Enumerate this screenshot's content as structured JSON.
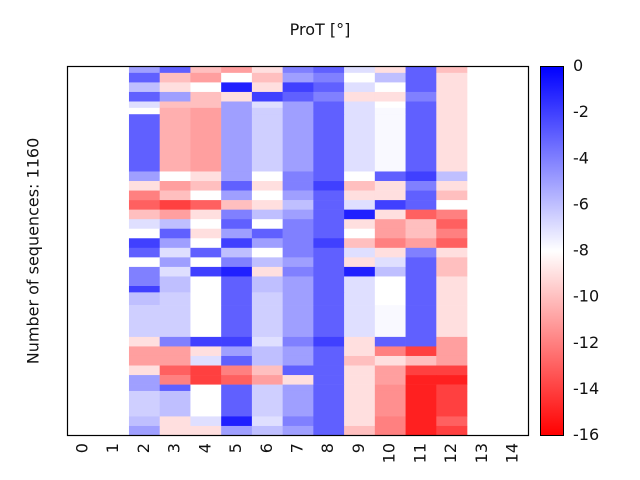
{
  "chart_data": {
    "type": "heatmap",
    "title": "ProT [°]",
    "xlabel": "",
    "ylabel": "Number of sequences: 1160",
    "x_ticks": [
      "0",
      "1",
      "2",
      "3",
      "4",
      "5",
      "6",
      "7",
      "8",
      "9",
      "10",
      "11",
      "12",
      "13",
      "14"
    ],
    "n_rows": 1160,
    "colorbar": {
      "min": -16,
      "max": 0,
      "ticks": [
        "0",
        "-2",
        "-4",
        "-6",
        "-8",
        "-10",
        "-12",
        "-14",
        "-16"
      ],
      "tick_values": [
        0,
        -2,
        -4,
        -6,
        -8,
        -10,
        -12,
        -14,
        -16
      ],
      "colormap": "bwr (red=-16, white=-8, blue=0)"
    },
    "data_columns": [
      2,
      3,
      4,
      5,
      6,
      7,
      8,
      9,
      10,
      11,
      12
    ],
    "segment_row_fractions": [
      0.02,
      0.03,
      0.03,
      0.03,
      0.02,
      0.02,
      0.18,
      0.03,
      0.03,
      0.03,
      0.03,
      0.03,
      0.03,
      0.03,
      0.03,
      0.03,
      0.03,
      0.03,
      0.03,
      0.02,
      0.04,
      0.1,
      0.03,
      0.03,
      0.03,
      0.03,
      0.03,
      0.02,
      0.08,
      0.03,
      0.03
    ],
    "segment_values": [
      [
        -5,
        -3,
        -10,
        -11,
        -9,
        -4,
        -3,
        -7,
        -9,
        -3,
        -10
      ],
      [
        -3,
        -10,
        -11,
        -8,
        -10,
        -5,
        -4,
        -8,
        -6,
        -3,
        -9
      ],
      [
        -6,
        -9,
        -8,
        -1,
        -9,
        -2,
        -3,
        -7,
        -8,
        -3,
        -9
      ],
      [
        -3,
        -5,
        -10,
        -9,
        -2,
        -3,
        -4,
        -9,
        -9,
        -4,
        -9
      ],
      [
        -7,
        -10,
        -10,
        -5,
        -7,
        -5,
        -3,
        -7,
        -8,
        -3,
        -9
      ],
      [
        -8,
        -10.5,
        -11,
        -5,
        -6.5,
        -5,
        -3,
        -7,
        -7.8,
        -3,
        -9
      ],
      [
        -3,
        -10.5,
        -11,
        -5,
        -6.5,
        -5,
        -3,
        -7,
        -7.8,
        -3,
        -9
      ],
      [
        -5,
        -8,
        -9,
        -5,
        -8,
        -4,
        -3,
        -8,
        -3,
        -2,
        -6
      ],
      [
        -9,
        -11,
        -10,
        -3,
        -9,
        -4,
        -2,
        -10,
        -9,
        -4,
        -9
      ],
      [
        -12,
        -10,
        -8,
        -5,
        -8,
        -5,
        -3,
        -9,
        -9,
        -3,
        -10
      ],
      [
        -13,
        -14,
        -13,
        -10,
        -9,
        -6,
        -3,
        -7,
        -2,
        -3,
        -8
      ],
      [
        -10,
        -11,
        -9,
        -4,
        -6,
        -5,
        -3,
        -1,
        -9,
        -13,
        -12
      ],
      [
        -7,
        -6,
        -8,
        -3,
        -8,
        -4,
        -3,
        -9,
        -11,
        -10,
        -13
      ],
      [
        -8,
        -3,
        -9,
        -5,
        -3,
        -4,
        -3,
        -8,
        -11,
        -10,
        -12
      ],
      [
        -2,
        -5,
        -8,
        -2,
        -5,
        -4,
        -2,
        -10,
        -12,
        -11,
        -13
      ],
      [
        -3,
        -7,
        -3,
        -6,
        -8,
        -4,
        -3,
        -7,
        -9,
        -4,
        -9
      ],
      [
        -8,
        -5,
        -8,
        -4,
        -6,
        -5,
        -3,
        -9,
        -7,
        -3,
        -10
      ],
      [
        -4,
        -7,
        -2,
        -1,
        -9,
        -4,
        -3,
        -1,
        -6,
        -3,
        -10
      ],
      [
        -4,
        -6,
        -8,
        -3,
        -6,
        -5,
        -3,
        -7,
        -8,
        -3,
        -9
      ],
      [
        -2,
        -6,
        -8,
        -3,
        -6,
        -5,
        -3,
        -7,
        -8,
        -3,
        -9
      ],
      [
        -6,
        -6.5,
        -8,
        -3,
        -6.5,
        -5,
        -3,
        -7,
        -8,
        -3,
        -9
      ],
      [
        -6.5,
        -6.5,
        -8,
        -3,
        -6.5,
        -5,
        -3,
        -7,
        -7.8,
        -3,
        -9
      ],
      [
        -9,
        -4,
        -2,
        -2,
        -7,
        -4,
        -2,
        -9,
        -3,
        -3,
        -11
      ],
      [
        -11,
        -11,
        -9,
        -5,
        -6,
        -5,
        -3,
        -9,
        -12,
        -14,
        -11
      ],
      [
        -11,
        -11,
        -7,
        -3,
        -6,
        -5,
        -3,
        -10,
        -9,
        -10,
        -11
      ],
      [
        -9,
        -13,
        -14,
        -12,
        -10,
        -3,
        -3,
        -9,
        -11,
        -14,
        -14
      ],
      [
        -5,
        -12,
        -14,
        -13,
        -11,
        -9,
        -3,
        -9,
        -11,
        -15,
        -15
      ],
      [
        -5,
        -3,
        -8,
        -3,
        -6.5,
        -5,
        -3,
        -9,
        -11.5,
        -15,
        -14
      ],
      [
        -6.5,
        -6,
        -8,
        -3,
        -6.5,
        -5,
        -3,
        -9,
        -11.5,
        -15,
        -14
      ],
      [
        -6,
        -9,
        -7,
        -1,
        -7,
        -4,
        -3,
        -9,
        -12,
        -15,
        -13
      ],
      [
        -5,
        -9,
        -9,
        -5,
        -6,
        -5,
        -3,
        -10,
        -12,
        -15,
        -14
      ]
    ]
  }
}
